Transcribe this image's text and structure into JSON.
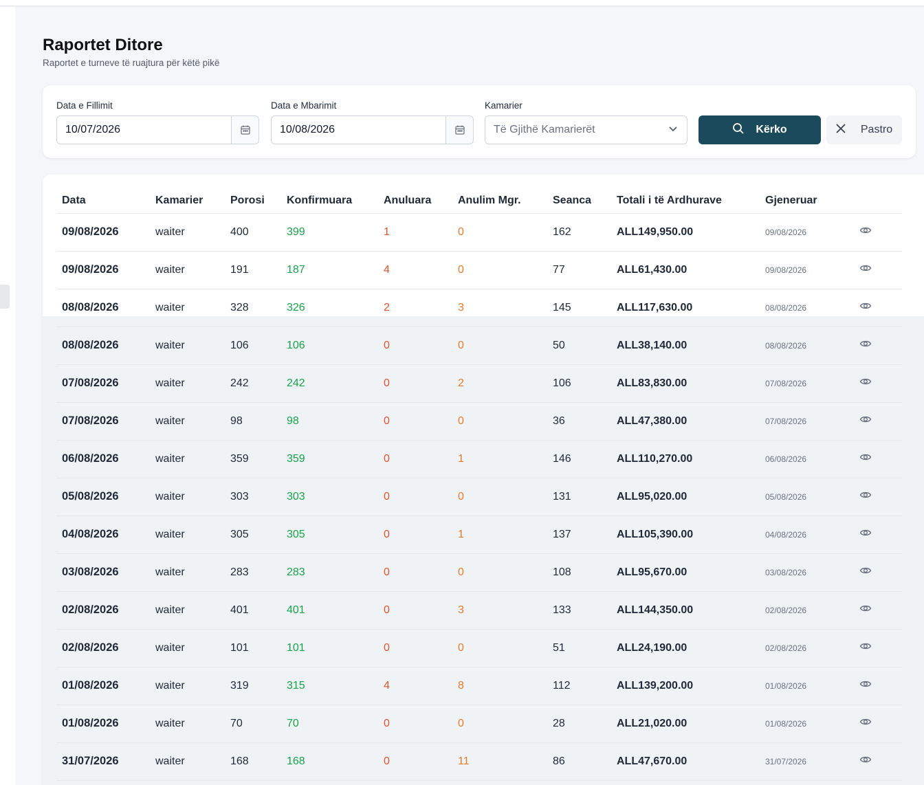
{
  "page": {
    "title": "Raportet Ditore",
    "subtitle": "Raportet e turneve të ruajtura për këtë pikë"
  },
  "filters": {
    "start_label": "Data e Fillimit",
    "start_value": "10/07/2026",
    "end_label": "Data e Mbarimit",
    "end_value": "10/08/2026",
    "waiter_label": "Kamarier",
    "waiter_value": "Të Gjithë Kamarierët",
    "search_label": "Kërko",
    "clear_label": "Pastro"
  },
  "table": {
    "columns": [
      "Data",
      "Kamarier",
      "Porosi",
      "Konfirmuara",
      "Anuluara",
      "Anulim Mgr.",
      "Seanca",
      "Totali i të Ardhurave",
      "Gjeneruar"
    ],
    "rows": [
      [
        "09/08/2026",
        "waiter",
        "400",
        "399",
        "1",
        "0",
        "162",
        "ALL149,950.00",
        "09/08/2026"
      ],
      [
        "09/08/2026",
        "waiter",
        "191",
        "187",
        "4",
        "0",
        "77",
        "ALL61,430.00",
        "09/08/2026"
      ],
      [
        "08/08/2026",
        "waiter",
        "328",
        "326",
        "2",
        "3",
        "145",
        "ALL117,630.00",
        "08/08/2026"
      ],
      [
        "08/08/2026",
        "waiter",
        "106",
        "106",
        "0",
        "0",
        "50",
        "ALL38,140.00",
        "08/08/2026"
      ],
      [
        "07/08/2026",
        "waiter",
        "242",
        "242",
        "0",
        "2",
        "106",
        "ALL83,830.00",
        "07/08/2026"
      ],
      [
        "07/08/2026",
        "waiter",
        "98",
        "98",
        "0",
        "0",
        "36",
        "ALL47,380.00",
        "07/08/2026"
      ],
      [
        "06/08/2026",
        "waiter",
        "359",
        "359",
        "0",
        "1",
        "146",
        "ALL110,270.00",
        "06/08/2026"
      ],
      [
        "05/08/2026",
        "waiter",
        "303",
        "303",
        "0",
        "0",
        "131",
        "ALL95,020.00",
        "05/08/2026"
      ],
      [
        "04/08/2026",
        "waiter",
        "305",
        "305",
        "0",
        "1",
        "137",
        "ALL105,390.00",
        "04/08/2026"
      ],
      [
        "03/08/2026",
        "waiter",
        "283",
        "283",
        "0",
        "0",
        "108",
        "ALL95,670.00",
        "03/08/2026"
      ],
      [
        "02/08/2026",
        "waiter",
        "401",
        "401",
        "0",
        "3",
        "133",
        "ALL144,350.00",
        "02/08/2026"
      ],
      [
        "02/08/2026",
        "waiter",
        "101",
        "101",
        "0",
        "0",
        "51",
        "ALL24,190.00",
        "02/08/2026"
      ],
      [
        "01/08/2026",
        "waiter",
        "319",
        "315",
        "4",
        "8",
        "112",
        "ALL139,200.00",
        "01/08/2026"
      ],
      [
        "01/08/2026",
        "waiter",
        "70",
        "70",
        "0",
        "0",
        "28",
        "ALL21,020.00",
        "01/08/2026"
      ],
      [
        "31/07/2026",
        "waiter",
        "168",
        "168",
        "0",
        "11",
        "86",
        "ALL47,670.00",
        "31/07/2026"
      ]
    ]
  },
  "colors": {
    "primary": "#1a4a5c",
    "confirmed": "#16a34a",
    "cancelled": "#e0542b",
    "manager_cancel": "#ea7a25"
  },
  "icons": {
    "calendar": "calendar-icon",
    "search": "search-icon",
    "clear": "close-icon",
    "dropdown": "chevron-down-icon",
    "view": "eye-icon"
  }
}
